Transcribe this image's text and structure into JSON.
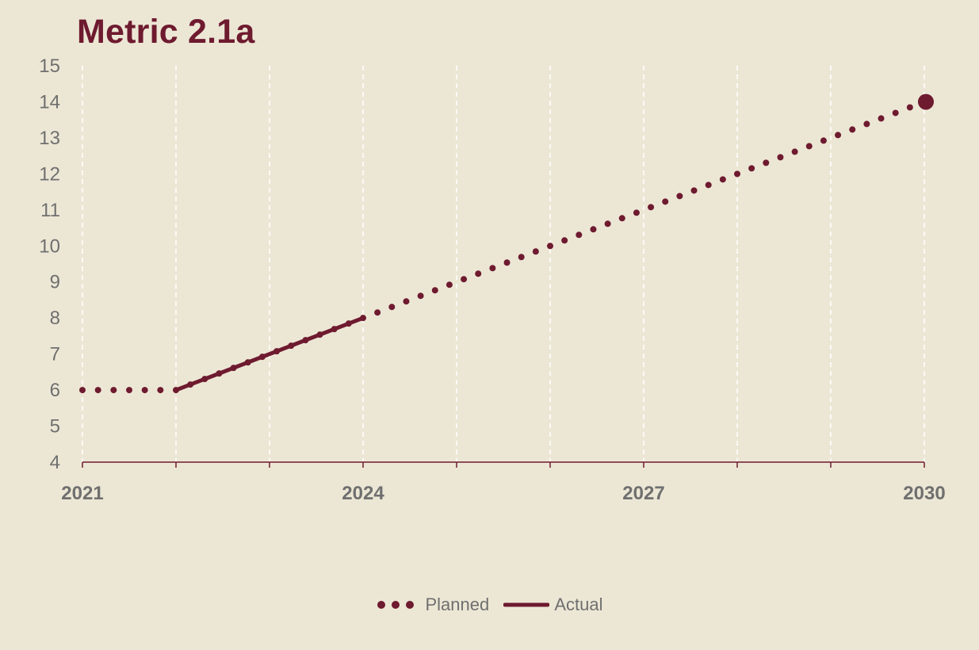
{
  "title": "Metric 2.1a",
  "colors": {
    "background": "#ece7d5",
    "series": "#6e1a2f",
    "grid": "#ffffff",
    "axis_text": "#6f6f6f"
  },
  "chart_data": {
    "type": "line",
    "title": "Metric 2.1a",
    "xlabel": "",
    "ylabel": "",
    "xlim": [
      2021,
      2030
    ],
    "ylim": [
      4,
      15
    ],
    "x_tick_labels": [
      "2021",
      "2024",
      "2027",
      "2030"
    ],
    "x_tick_values": [
      2021,
      2024,
      2027,
      2030
    ],
    "y_ticks": [
      4,
      5,
      6,
      7,
      8,
      9,
      10,
      11,
      12,
      13,
      14,
      15
    ],
    "vertical_gridlines": "dashed",
    "legend_position": "bottom",
    "series": [
      {
        "name": "Planned",
        "style": "dotted",
        "points": [
          {
            "x": 2021,
            "y": 6
          },
          {
            "x": 2022,
            "y": 6
          },
          {
            "x": 2024,
            "y": 8
          },
          {
            "x": 2030,
            "y": 14
          }
        ],
        "end_marker": true
      },
      {
        "name": "Actual",
        "style": "solid",
        "points": [
          {
            "x": 2022,
            "y": 6
          },
          {
            "x": 2024,
            "y": 8
          }
        ]
      }
    ]
  }
}
